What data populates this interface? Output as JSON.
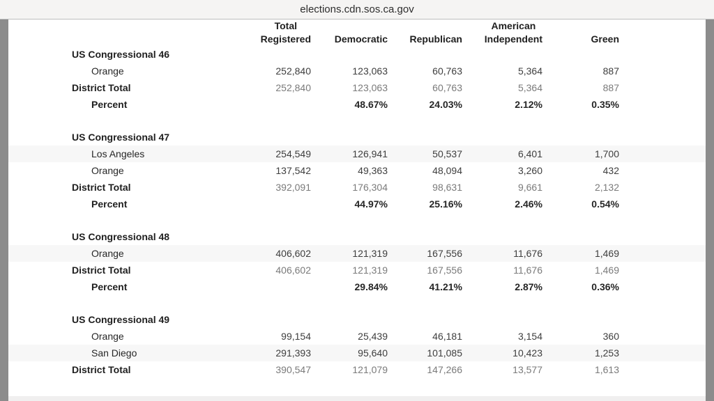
{
  "window": {
    "title": "elections.cdn.sos.ca.gov"
  },
  "table": {
    "headers": [
      {
        "line1": "Total",
        "line2": "Registered"
      },
      {
        "line1": "",
        "line2": "Democratic"
      },
      {
        "line1": "",
        "line2": "Republican"
      },
      {
        "line1": "American",
        "line2": "Independent"
      },
      {
        "line1": "",
        "line2": "Green"
      }
    ],
    "sections": [
      {
        "district": "US Congressional 46",
        "rows": [
          {
            "type": "county",
            "label": "Orange",
            "striped": false,
            "values": [
              "252,840",
              "123,063",
              "60,763",
              "5,364",
              "887"
            ]
          },
          {
            "type": "total",
            "label": "District Total",
            "striped": false,
            "values": [
              "252,840",
              "123,063",
              "60,763",
              "5,364",
              "887"
            ]
          },
          {
            "type": "percent",
            "label": "Percent",
            "striped": false,
            "values": [
              "",
              "48.67%",
              "24.03%",
              "2.12%",
              "0.35%"
            ]
          }
        ]
      },
      {
        "district": "US Congressional 47",
        "rows": [
          {
            "type": "county",
            "label": "Los Angeles",
            "striped": true,
            "values": [
              "254,549",
              "126,941",
              "50,537",
              "6,401",
              "1,700"
            ]
          },
          {
            "type": "county",
            "label": "Orange",
            "striped": false,
            "values": [
              "137,542",
              "49,363",
              "48,094",
              "3,260",
              "432"
            ]
          },
          {
            "type": "total",
            "label": "District Total",
            "striped": false,
            "values": [
              "392,091",
              "176,304",
              "98,631",
              "9,661",
              "2,132"
            ]
          },
          {
            "type": "percent",
            "label": "Percent",
            "striped": false,
            "values": [
              "",
              "44.97%",
              "25.16%",
              "2.46%",
              "0.54%"
            ]
          }
        ]
      },
      {
        "district": "US Congressional 48",
        "rows": [
          {
            "type": "county",
            "label": "Orange",
            "striped": true,
            "values": [
              "406,602",
              "121,319",
              "167,556",
              "11,676",
              "1,469"
            ]
          },
          {
            "type": "total",
            "label": "District Total",
            "striped": false,
            "values": [
              "406,602",
              "121,319",
              "167,556",
              "11,676",
              "1,469"
            ]
          },
          {
            "type": "percent",
            "label": "Percent",
            "striped": false,
            "values": [
              "",
              "29.84%",
              "41.21%",
              "2.87%",
              "0.36%"
            ]
          }
        ]
      },
      {
        "district": "US Congressional 49",
        "rows": [
          {
            "type": "county",
            "label": "Orange",
            "striped": false,
            "values": [
              "99,154",
              "25,439",
              "46,181",
              "3,154",
              "360"
            ]
          },
          {
            "type": "county",
            "label": "San Diego",
            "striped": true,
            "values": [
              "291,393",
              "95,640",
              "101,085",
              "10,423",
              "1,253"
            ]
          },
          {
            "type": "total",
            "label": "District Total",
            "striped": false,
            "values": [
              "390,547",
              "121,079",
              "147,266",
              "13,577",
              "1,613"
            ]
          }
        ]
      }
    ]
  }
}
